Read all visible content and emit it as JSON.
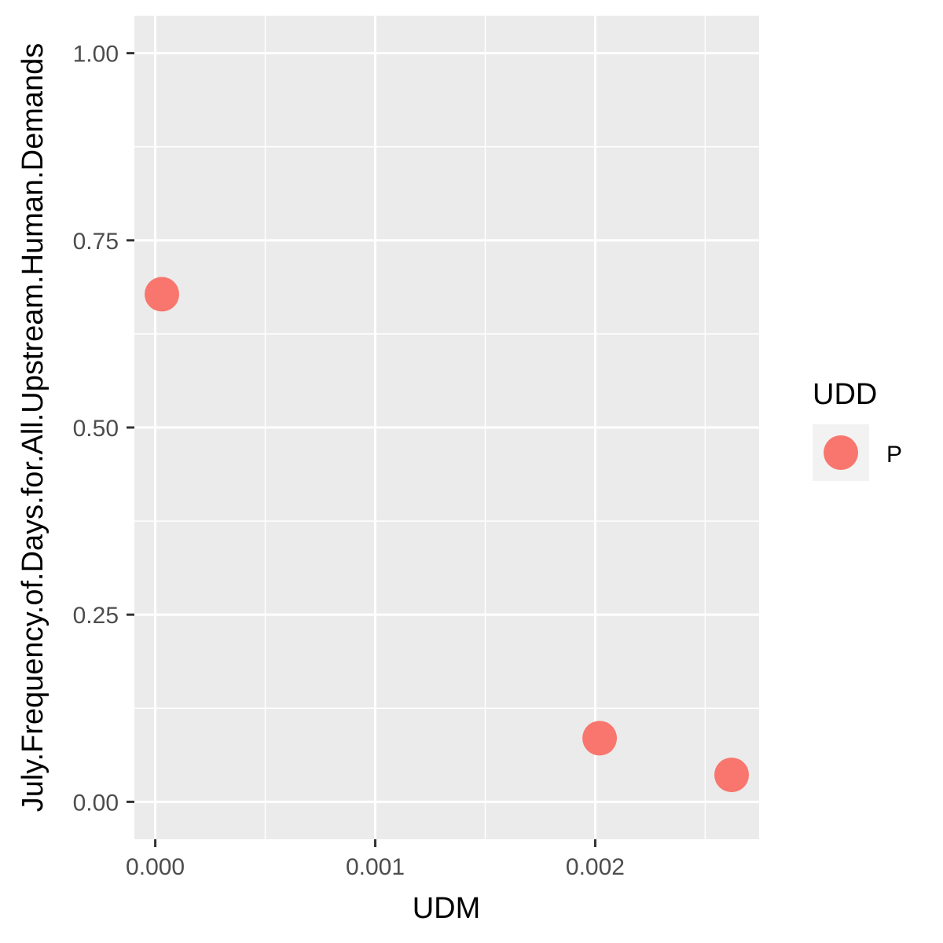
{
  "chart_data": {
    "type": "scatter",
    "title": "",
    "xlabel": "UDM",
    "ylabel": "July.Frequency.of.Days.for.All.Upstream.Human.Demands",
    "xlim": [
      -9.5e-05,
      0.002745
    ],
    "ylim": [
      -0.05,
      1.05
    ],
    "x_ticks": [
      0,
      0.001,
      0.002
    ],
    "x_tick_labels": [
      "0.000",
      "0.001",
      "0.002"
    ],
    "x_minor_ticks": [
      0.0005,
      0.0015,
      0.0025
    ],
    "y_ticks": [
      0,
      0.25,
      0.5,
      0.75,
      1
    ],
    "y_tick_labels": [
      "0.00",
      "0.25",
      "0.50",
      "0.75",
      "1.00"
    ],
    "y_minor_ticks": [
      0.125,
      0.375,
      0.625,
      0.875
    ],
    "grid": true,
    "legend": {
      "title": "UDD",
      "position": "right"
    },
    "series": [
      {
        "name": "P",
        "color": "#F8766D",
        "points": [
          {
            "x": 3e-05,
            "y": 0.678
          },
          {
            "x": 0.00202,
            "y": 0.085
          },
          {
            "x": 0.00262,
            "y": 0.036
          }
        ]
      }
    ]
  },
  "colors": {
    "panel_background": "#EBEBEB",
    "grid": "#FFFFFF",
    "tick": "#333333"
  }
}
